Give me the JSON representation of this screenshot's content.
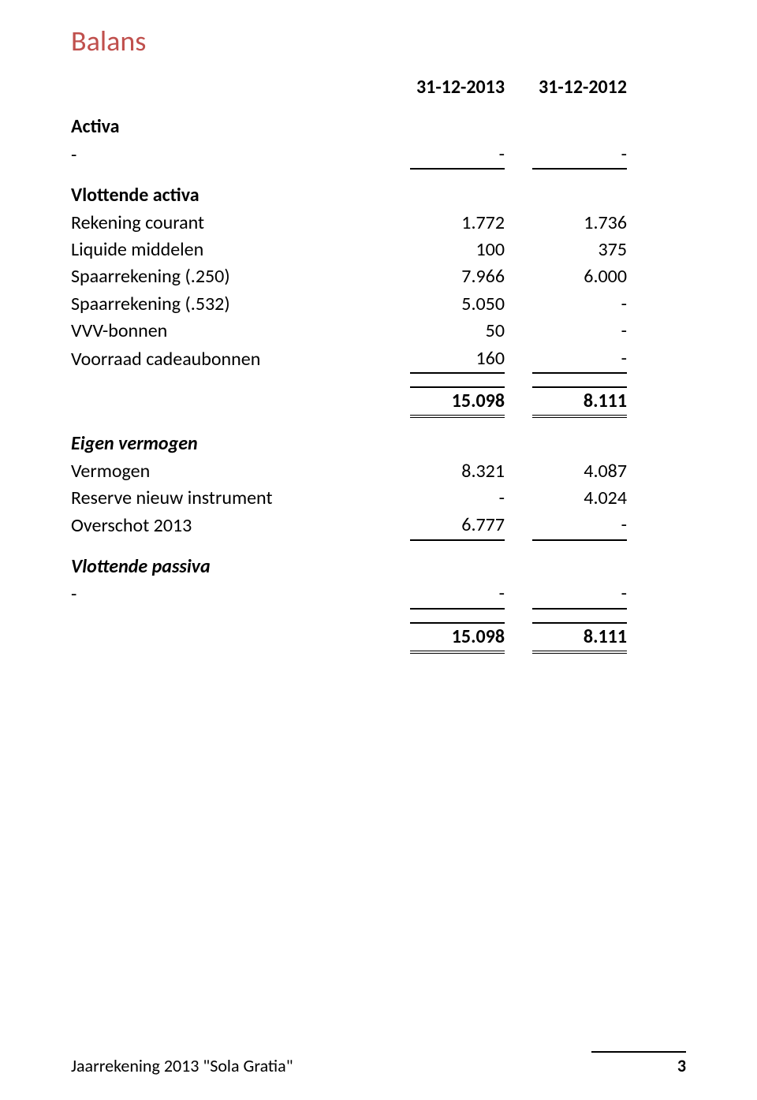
{
  "title": "Balans",
  "header": {
    "col1": "31-12-2013",
    "col2": "31-12-2012"
  },
  "activa": {
    "heading": "Activa",
    "dash_label": "-",
    "dash_col1": "-",
    "dash_col2": "-"
  },
  "vlottende_activa": {
    "heading": "Vlottende activa",
    "rows": [
      {
        "label": "Rekening courant",
        "col1": "1.772",
        "col2": "1.736"
      },
      {
        "label": "Liquide middelen",
        "col1": "100",
        "col2": "375"
      },
      {
        "label": "Spaarrekening (.250)",
        "col1": "7.966",
        "col2": "6.000"
      },
      {
        "label": "Spaarrekening (.532)",
        "col1": "5.050",
        "col2": "-"
      },
      {
        "label": "VVV-bonnen",
        "col1": "50",
        "col2": "-"
      },
      {
        "label": "Voorraad cadeaubonnen",
        "col1": "160",
        "col2": "-"
      }
    ]
  },
  "totaal_activa": {
    "col1": "15.098",
    "col2": "8.111"
  },
  "eigen_vermogen": {
    "heading": "Eigen vermogen",
    "rows": [
      {
        "label": "Vermogen",
        "col1": "8.321",
        "col2": "4.087"
      },
      {
        "label": "Reserve nieuw instrument",
        "col1": "-",
        "col2": "4.024"
      },
      {
        "label": "Overschot 2013",
        "col1": "6.777",
        "col2": "-"
      }
    ]
  },
  "vlottende_passiva": {
    "heading": "Vlottende passiva",
    "dash_label": "-",
    "dash_col1": "-",
    "dash_col2": "-"
  },
  "totaal_passiva": {
    "col1": "15.098",
    "col2": "8.111"
  },
  "footer": {
    "left": "Jaarrekening 2013 \"Sola Gratia\"",
    "page": "3"
  }
}
